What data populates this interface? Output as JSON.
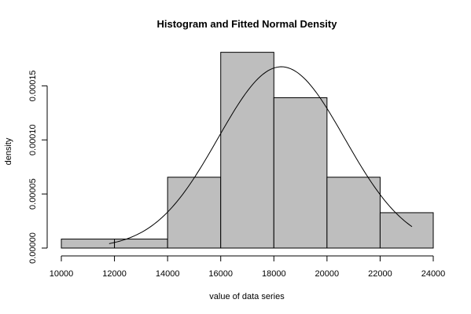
{
  "chart_data": {
    "type": "bar",
    "title": "Histogram and Fitted Normal Density",
    "xlabel": "value of data series",
    "ylabel": "density",
    "bins": [
      {
        "start": 10000,
        "end": 12000,
        "density": 8.3e-06
      },
      {
        "start": 12000,
        "end": 14000,
        "density": 8.3e-06
      },
      {
        "start": 14000,
        "end": 16000,
        "density": 6.55e-05
      },
      {
        "start": 16000,
        "end": 18000,
        "density": 0.000181
      },
      {
        "start": 18000,
        "end": 20000,
        "density": 0.000139
      },
      {
        "start": 20000,
        "end": 22000,
        "density": 6.55e-05
      },
      {
        "start": 22000,
        "end": 24000,
        "density": 3.27e-05
      }
    ],
    "fitted_normal": {
      "mean": 18280,
      "sd": 2380,
      "x_start": 11800,
      "x_end": 23200
    },
    "xlim": [
      10000,
      24000
    ],
    "ylim": [
      0,
      0.00018
    ],
    "x_ticks": [
      "10000",
      "12000",
      "14000",
      "16000",
      "18000",
      "20000",
      "22000",
      "24000"
    ],
    "y_ticks": [
      "0.00000",
      "0.00005",
      "0.00010",
      "0.00015"
    ],
    "grid": false,
    "colors": {
      "bar_fill": "#bebebe",
      "line": "#000000"
    }
  }
}
